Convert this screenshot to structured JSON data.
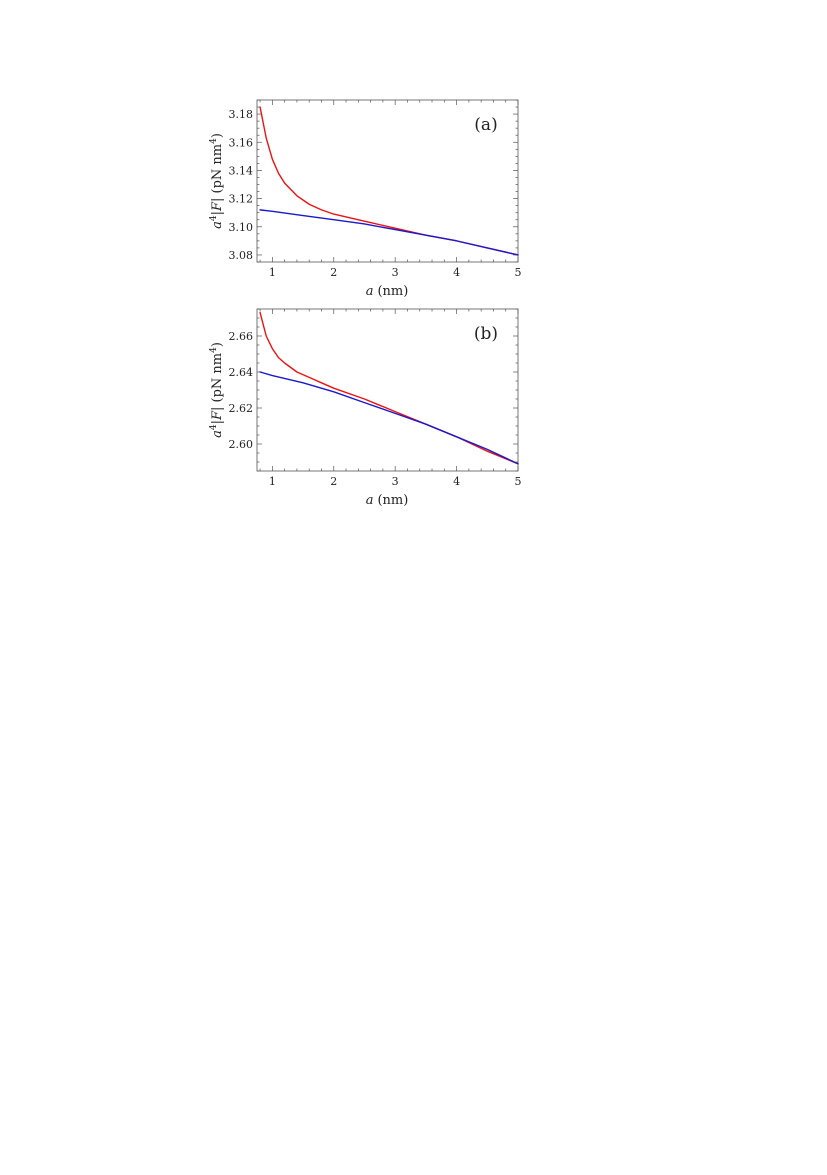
{
  "colors": {
    "red_curve": "#ee1111",
    "blue_curve": "#1a1acc",
    "frame": "#555555"
  },
  "chart_data": [
    {
      "type": "line",
      "panel_label": "(a)",
      "xlabel": "a (nm)",
      "xlabel_var": "a",
      "xlabel_unit": "(nm)",
      "ylabel": "a^4|F| (pN nm^4)",
      "xlim": [
        0.75,
        5.0
      ],
      "ylim": [
        3.075,
        3.19
      ],
      "xticks": [
        1,
        2,
        3,
        4,
        5
      ],
      "yticks": [
        "3.08",
        "3.10",
        "3.12",
        "3.14",
        "3.16",
        "3.18"
      ],
      "grid": false,
      "series": [
        {
          "color": "red",
          "x": [
            0.8,
            0.9,
            1.0,
            1.1,
            1.2,
            1.4,
            1.6,
            1.8,
            2.0,
            2.5,
            3.0,
            3.5,
            4.0,
            4.5,
            5.0
          ],
          "y": [
            3.185,
            3.163,
            3.148,
            3.138,
            3.131,
            3.122,
            3.116,
            3.112,
            3.109,
            3.104,
            3.099,
            3.094,
            3.09,
            3.085,
            3.08
          ]
        },
        {
          "color": "blue",
          "x": [
            0.8,
            1.0,
            1.5,
            2.0,
            2.5,
            3.0,
            3.5,
            4.0,
            4.5,
            5.0
          ],
          "y": [
            3.112,
            3.111,
            3.108,
            3.105,
            3.102,
            3.098,
            3.094,
            3.09,
            3.085,
            3.08
          ]
        }
      ]
    },
    {
      "type": "line",
      "panel_label": "(b)",
      "xlabel": "a (nm)",
      "xlabel_var": "a",
      "xlabel_unit": "(nm)",
      "ylabel": "a^4|F| (pN nm^4)",
      "xlim": [
        0.75,
        5.0
      ],
      "ylim": [
        2.585,
        2.675
      ],
      "xticks": [
        1,
        2,
        3,
        4,
        5
      ],
      "yticks": [
        "2.60",
        "2.62",
        "2.64",
        "2.66"
      ],
      "grid": false,
      "series": [
        {
          "color": "red",
          "x": [
            0.8,
            0.9,
            1.0,
            1.1,
            1.2,
            1.4,
            1.6,
            1.8,
            2.0,
            2.5,
            3.0,
            3.5,
            4.0,
            4.5,
            5.0
          ],
          "y": [
            2.673,
            2.66,
            2.653,
            2.648,
            2.645,
            2.64,
            2.637,
            2.634,
            2.631,
            2.625,
            2.618,
            2.611,
            2.604,
            2.596,
            2.589
          ]
        },
        {
          "color": "blue",
          "x": [
            0.8,
            1.0,
            1.5,
            2.0,
            2.5,
            3.0,
            3.5,
            4.0,
            4.5,
            5.0
          ],
          "y": [
            2.64,
            2.638,
            2.634,
            2.629,
            2.623,
            2.617,
            2.611,
            2.604,
            2.597,
            2.589
          ]
        }
      ]
    }
  ]
}
